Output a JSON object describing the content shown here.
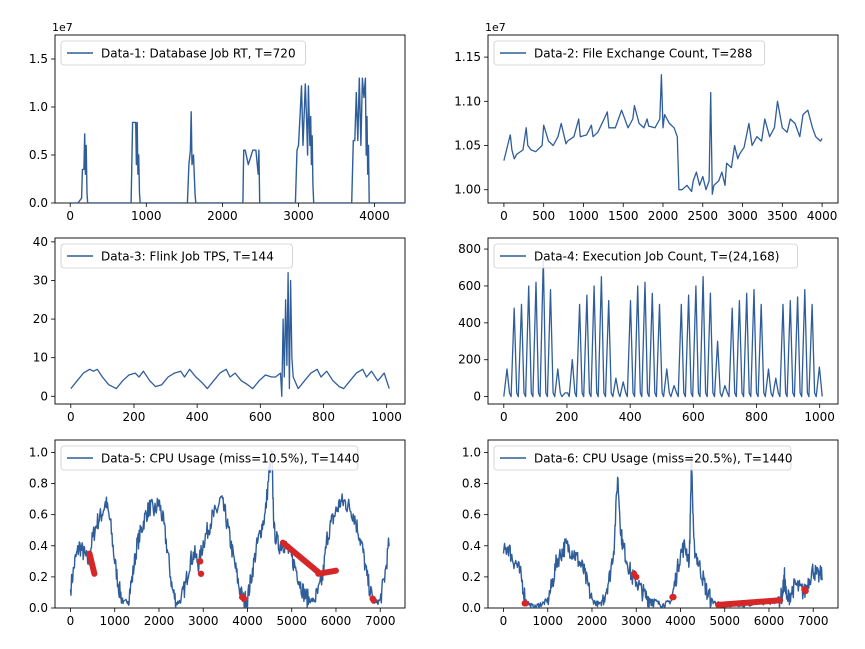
{
  "chart_data": [
    {
      "type": "line",
      "legend": "Data-1: Database Job RT, T=720",
      "legend_loc": "upper-left",
      "offset_text": "1e7",
      "xlim": [
        -200,
        4400
      ],
      "ylim": [
        0,
        1.75
      ],
      "xticks": [
        0,
        1000,
        2000,
        3000,
        4000
      ],
      "xtick_labels": [
        "0",
        "1000",
        "2000",
        "3000",
        "4000"
      ],
      "yticks": [
        0.0,
        0.5,
        1.0,
        1.5
      ],
      "ytick_labels": [
        "0.0",
        "0.5",
        "1.0",
        "1.5"
      ],
      "color": "#2f5d9a",
      "series": [
        {
          "x": [
            0,
            100,
            150,
            160,
            180,
            190,
            200,
            210,
            220,
            230,
            800,
            820,
            860,
            870,
            880,
            890,
            900,
            910,
            920,
            1540,
            1560,
            1580,
            1590,
            1600,
            1620,
            1640,
            1650,
            2270,
            2280,
            2300,
            2340,
            2400,
            2440,
            2470,
            2480,
            2490,
            2960,
            2980,
            3000,
            3020,
            3040,
            3060,
            3090,
            3110,
            3120,
            3130,
            3150,
            3160,
            3170,
            3180,
            3190,
            3200,
            3700,
            3720,
            3740,
            3760,
            3780,
            3800,
            3820,
            3840,
            3860,
            3880,
            3890,
            3900,
            3910,
            3920,
            3930,
            4400
          ],
          "y": [
            0,
            0,
            0.05,
            0.35,
            0.35,
            0.72,
            0.3,
            0.6,
            0.1,
            0,
            0,
            0.84,
            0.84,
            0.4,
            0.84,
            0.3,
            0.5,
            0.1,
            0,
            0,
            0.4,
            0.55,
            0.95,
            0.4,
            0.5,
            0.1,
            0,
            0,
            0.55,
            0.55,
            0.4,
            0.55,
            0.55,
            0.3,
            0.55,
            0,
            0,
            0.55,
            0.6,
            0.9,
            1.22,
            0.6,
            1.24,
            0.8,
            0.5,
            1.22,
            0.6,
            0.9,
            0.4,
            0.7,
            0.2,
            0,
            0,
            0.65,
            0.65,
            1.15,
            0.65,
            1.3,
            0.6,
            1.3,
            1.1,
            1.3,
            0.5,
            0.9,
            0.3,
            0.6,
            0,
            0
          ]
        }
      ]
    },
    {
      "type": "line",
      "legend": "Data-2: File Exchange Count, T=288",
      "legend_loc": "upper-left",
      "offset_text": "1e7",
      "xlim": [
        -200,
        4200
      ],
      "ylim": [
        0.985,
        1.175
      ],
      "xticks": [
        0,
        500,
        1000,
        1500,
        2000,
        2500,
        3000,
        3500,
        4000
      ],
      "xtick_labels": [
        "0",
        "500",
        "1000",
        "1500",
        "2000",
        "2500",
        "3000",
        "3500",
        "4000"
      ],
      "yticks": [
        1.0,
        1.05,
        1.1,
        1.15
      ],
      "ytick_labels": [
        "1.00",
        "1.05",
        "1.10",
        "1.15"
      ],
      "color": "#2f5d9a",
      "series": [
        {
          "x": [
            0,
            60,
            80,
            100,
            130,
            160,
            240,
            280,
            300,
            340,
            400,
            480,
            500,
            560,
            620,
            680,
            720,
            780,
            800,
            880,
            940,
            960,
            1040,
            1100,
            1120,
            1180,
            1260,
            1300,
            1320,
            1400,
            1460,
            1480,
            1560,
            1620,
            1640,
            1700,
            1760,
            1800,
            1820,
            1900,
            1960,
            1980,
            2000,
            2020,
            2080,
            2140,
            2180,
            2200,
            2240,
            2300,
            2360,
            2380,
            2420,
            2460,
            2500,
            2540,
            2580,
            2600,
            2620,
            2640,
            2700,
            2740,
            2780,
            2800,
            2860,
            2900,
            2940,
            2960,
            3020,
            3080,
            3120,
            3180,
            3240,
            3280,
            3340,
            3400,
            3440,
            3500,
            3560,
            3600,
            3660,
            3720,
            3760,
            3820,
            3880,
            3920,
            3980,
            4000
          ],
          "y": [
            1.033,
            1.055,
            1.062,
            1.045,
            1.035,
            1.04,
            1.045,
            1.07,
            1.05,
            1.045,
            1.043,
            1.05,
            1.073,
            1.055,
            1.05,
            1.06,
            1.075,
            1.052,
            1.055,
            1.06,
            1.08,
            1.06,
            1.062,
            1.073,
            1.06,
            1.065,
            1.08,
            1.088,
            1.07,
            1.07,
            1.085,
            1.09,
            1.07,
            1.08,
            1.095,
            1.075,
            1.07,
            1.08,
            1.072,
            1.07,
            1.08,
            1.13,
            1.07,
            1.085,
            1.075,
            1.07,
            1.06,
            1.0,
            1.0,
            1.005,
            0.998,
            1.01,
            1.02,
            1.005,
            1.015,
            1.0,
            1.01,
            1.11,
            0.995,
            1.005,
            1.01,
            1.02,
            1.005,
            1.03,
            1.025,
            1.05,
            1.035,
            1.04,
            1.048,
            1.075,
            1.05,
            1.06,
            1.055,
            1.08,
            1.06,
            1.07,
            1.1,
            1.07,
            1.065,
            1.08,
            1.075,
            1.06,
            1.085,
            1.09,
            1.07,
            1.06,
            1.055,
            1.058
          ]
        }
      ]
    },
    {
      "type": "line",
      "legend": "Data-3: Flink Job TPS, T=144",
      "legend_loc": "upper-left",
      "xlim": [
        -50,
        1058
      ],
      "ylim": [
        -2,
        41
      ],
      "xticks": [
        0,
        200,
        400,
        600,
        800,
        1000
      ],
      "xtick_labels": [
        "0",
        "200",
        "400",
        "600",
        "800",
        "1000"
      ],
      "yticks": [
        0,
        10,
        20,
        30,
        40
      ],
      "ytick_labels": [
        "0",
        "10",
        "20",
        "30",
        "40"
      ],
      "color": "#2f5d9a",
      "series": [
        {
          "x": [
            0,
            20,
            40,
            60,
            72,
            84,
            100,
            120,
            144,
            164,
            184,
            204,
            216,
            230,
            250,
            268,
            288,
            308,
            328,
            348,
            360,
            376,
            396,
            416,
            432,
            452,
            472,
            492,
            504,
            520,
            540,
            560,
            576,
            596,
            616,
            636,
            648,
            664,
            668,
            672,
            676,
            680,
            684,
            688,
            692,
            696,
            700,
            704,
            720,
            740,
            760,
            780,
            792,
            810,
            830,
            850,
            864,
            884,
            904,
            924,
            936,
            952,
            972,
            992,
            1008
          ],
          "y": [
            2,
            4,
            6,
            7,
            6.5,
            7,
            5,
            3,
            2,
            4,
            5.5,
            6,
            5,
            6.5,
            4,
            2.5,
            3,
            5,
            6,
            6.5,
            5,
            7,
            5,
            3.5,
            2,
            4,
            6,
            7,
            5,
            6,
            4,
            3,
            2,
            4,
            5.5,
            5,
            5,
            6,
            0,
            20,
            5,
            25,
            8,
            32,
            2,
            30,
            10,
            5,
            2,
            4,
            6,
            7,
            5,
            6.5,
            4,
            2.5,
            2,
            4,
            6,
            7,
            5,
            6.5,
            4,
            6,
            2
          ]
        }
      ]
    },
    {
      "type": "line",
      "legend": "Data-4: Execution Job Count, T=(24,168)",
      "legend_loc": "upper-left",
      "xlim": [
        -50,
        1058
      ],
      "ylim": [
        -40,
        860
      ],
      "xticks": [
        0,
        200,
        400,
        600,
        800,
        1000
      ],
      "xtick_labels": [
        "0",
        "200",
        "400",
        "600",
        "800",
        "1000"
      ],
      "yticks": [
        0,
        200,
        400,
        600,
        800
      ],
      "ytick_labels": [
        "0",
        "200",
        "400",
        "600",
        "800"
      ],
      "color": "#2f5d9a",
      "peaks": [
        150,
        480,
        500,
        600,
        620,
        750,
        580,
        150,
        20,
        200,
        500,
        550,
        600,
        650,
        520,
        100,
        80,
        520,
        600,
        620,
        560,
        500,
        150,
        60,
        500,
        550,
        600,
        650,
        560,
        300,
        60,
        480,
        520,
        560,
        580,
        500,
        150,
        100,
        500,
        520,
        540,
        580,
        500,
        160
      ]
    },
    {
      "type": "line",
      "legend": "Data-5: CPU Usage (miss=10.5%), T=1440",
      "legend_loc": "upper-left",
      "xlim": [
        -350,
        7560
      ],
      "ylim": [
        0,
        1.08
      ],
      "xticks": [
        0,
        1000,
        2000,
        3000,
        4000,
        5000,
        6000,
        7000
      ],
      "xtick_labels": [
        "0",
        "1000",
        "2000",
        "3000",
        "4000",
        "5000",
        "6000",
        "7000"
      ],
      "yticks": [
        0.0,
        0.2,
        0.4,
        0.6,
        0.8,
        1.0
      ],
      "ytick_labels": [
        "0.0",
        "0.2",
        "0.4",
        "0.6",
        "0.8",
        "1.0"
      ],
      "color": "#2f5d9a",
      "missing_color": "#d62728",
      "series": [
        {
          "x": [
            0,
            100,
            200,
            300,
            400,
            500,
            600,
            700,
            800,
            900,
            1000,
            1100,
            1200,
            1300,
            1400,
            1500,
            1600,
            1700,
            1800,
            1900,
            2000,
            2100,
            2200,
            2300,
            2400,
            2500,
            2600,
            2700,
            2800,
            2900,
            3000,
            3100,
            3200,
            3300,
            3400,
            3500,
            3600,
            3700,
            3800,
            3900,
            4000,
            4100,
            4200,
            4300,
            4400,
            4500,
            4550,
            4600,
            4700,
            4800,
            4900,
            5000,
            5100,
            5200,
            5300,
            5400,
            5500,
            5600,
            5700,
            5800,
            5900,
            6000,
            6100,
            6200,
            6300,
            6400,
            6500,
            6600,
            6700,
            6800,
            6900,
            7000,
            7100,
            7200
          ],
          "y": [
            0.12,
            0.3,
            0.4,
            0.35,
            0.3,
            0.45,
            0.55,
            0.6,
            0.68,
            0.55,
            0.3,
            0.12,
            0.03,
            0.05,
            0.2,
            0.4,
            0.5,
            0.6,
            0.65,
            0.62,
            0.68,
            0.55,
            0.35,
            0.12,
            0.03,
            0.05,
            0.15,
            0.3,
            0.35,
            0.28,
            0.42,
            0.5,
            0.58,
            0.62,
            0.7,
            0.6,
            0.45,
            0.3,
            0.15,
            0.05,
            0.06,
            0.22,
            0.38,
            0.5,
            0.6,
            0.9,
            0.98,
            0.5,
            0.4,
            0.42,
            0.38,
            0.32,
            0.25,
            0.15,
            0.08,
            0.05,
            0.05,
            0.1,
            0.2,
            0.45,
            0.55,
            0.62,
            0.68,
            0.68,
            0.65,
            0.6,
            0.5,
            0.38,
            0.2,
            0.08,
            0.03,
            0.05,
            0.2,
            0.42
          ]
        }
      ],
      "missing": [
        {
          "x": [
            430,
            540
          ],
          "y": [
            0.35,
            0.22
          ]
        },
        {
          "x": [
            2930,
            2950
          ],
          "y": [
            0.3,
            0.22
          ]
        },
        {
          "x": [
            3880,
            3920
          ],
          "y": [
            0.07,
            0.06
          ]
        },
        {
          "x": [
            4800,
            5600
          ],
          "y": [
            0.42,
            0.23
          ]
        },
        {
          "x": [
            5600,
            6000
          ],
          "y": [
            0.22,
            0.24
          ]
        },
        {
          "x": [
            6830,
            6850
          ],
          "y": [
            0.06,
            0.05
          ]
        }
      ]
    },
    {
      "type": "line",
      "legend": "Data-6: CPU Usage (miss=20.5%), T=1440",
      "legend_loc": "upper-left",
      "xlim": [
        -350,
        7560
      ],
      "ylim": [
        0,
        1.08
      ],
      "xticks": [
        0,
        1000,
        2000,
        3000,
        4000,
        5000,
        6000,
        7000
      ],
      "xtick_labels": [
        "0",
        "1000",
        "2000",
        "3000",
        "4000",
        "5000",
        "6000",
        "7000"
      ],
      "yticks": [
        0.0,
        0.2,
        0.4,
        0.6,
        0.8,
        1.0
      ],
      "ytick_labels": [
        "0.0",
        "0.2",
        "0.4",
        "0.6",
        "0.8",
        "1.0"
      ],
      "color": "#2f5d9a",
      "missing_color": "#d62728",
      "series": [
        {
          "x": [
            0,
            100,
            200,
            300,
            400,
            500,
            600,
            700,
            800,
            900,
            1000,
            1100,
            1200,
            1300,
            1400,
            1500,
            1600,
            1700,
            1800,
            1900,
            2000,
            2100,
            2200,
            2300,
            2400,
            2500,
            2580,
            2650,
            2700,
            2800,
            2900,
            3000,
            3100,
            3200,
            3300,
            3400,
            3500,
            3600,
            3700,
            3800,
            3900,
            4000,
            4100,
            4200,
            4250,
            4300,
            4400,
            4500,
            4600,
            4700,
            4800,
            4900,
            5000,
            5500,
            6000,
            6200,
            6300,
            6350,
            6400,
            6500,
            6600,
            6700,
            6800,
            6900,
            7000,
            7100,
            7200
          ],
          "y": [
            0.35,
            0.4,
            0.32,
            0.28,
            0.2,
            0.05,
            0.02,
            0.0,
            0.02,
            0.03,
            0.05,
            0.15,
            0.3,
            0.35,
            0.4,
            0.38,
            0.35,
            0.3,
            0.25,
            0.15,
            0.05,
            0.03,
            0.02,
            0.1,
            0.2,
            0.4,
            0.85,
            0.5,
            0.4,
            0.3,
            0.2,
            0.18,
            0.12,
            0.08,
            0.06,
            0.05,
            0.03,
            0.02,
            0.03,
            0.05,
            0.2,
            0.35,
            0.4,
            0.3,
            0.98,
            0.4,
            0.3,
            0.2,
            0.1,
            0.05,
            0.03,
            0.02,
            0.02,
            0.02,
            0.04,
            0.05,
            0.08,
            0.2,
            0.05,
            0.1,
            0.15,
            0.12,
            0.1,
            0.18,
            0.25,
            0.2,
            0.22
          ]
        }
      ],
      "missing": [
        {
          "x": [
            480,
            500
          ],
          "y": [
            0.03,
            0.03
          ]
        },
        {
          "x": [
            2950,
            3000
          ],
          "y": [
            0.22,
            0.2
          ]
        },
        {
          "x": [
            3820,
            3840
          ],
          "y": [
            0.07,
            0.07
          ]
        },
        {
          "x": [
            4850,
            6250
          ],
          "y": [
            0.02,
            0.05
          ]
        },
        {
          "x": [
            6800,
            6830
          ],
          "y": [
            0.12,
            0.11
          ]
        }
      ]
    }
  ]
}
